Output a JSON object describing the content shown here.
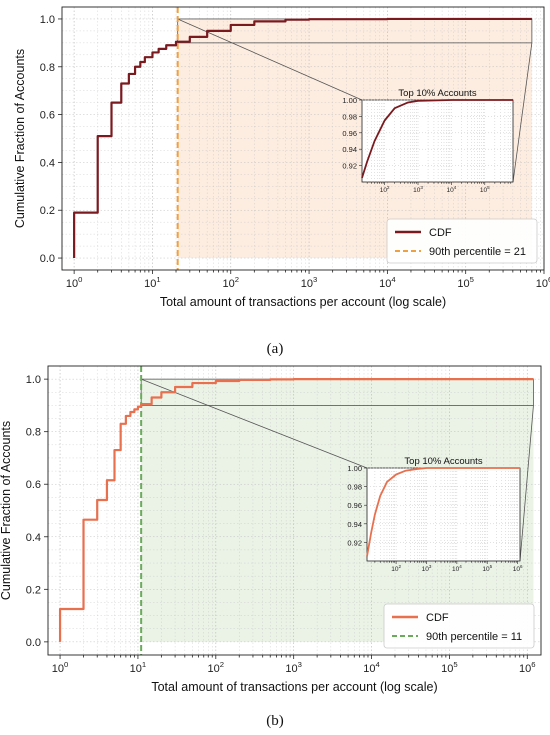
{
  "chart_data": [
    {
      "type": "line",
      "caption": "(a)",
      "xlabel": "Total amount of transactions per account (log scale)",
      "ylabel": "Cumulative Fraction of Accounts",
      "xscale": "log",
      "xlim": [
        0.7,
        1000000
      ],
      "ylim": [
        -0.05,
        1.05
      ],
      "xticks": [
        1,
        10,
        100,
        1000,
        10000,
        100000,
        1000000
      ],
      "xtick_labels": [
        [
          "10",
          "0"
        ],
        [
          "10",
          "1"
        ],
        [
          "10",
          "2"
        ],
        [
          "10",
          "3"
        ],
        [
          "10",
          "4"
        ],
        [
          "10",
          "5"
        ],
        [
          "10",
          "6"
        ]
      ],
      "yticks": [
        0.0,
        0.2,
        0.4,
        0.6,
        0.8,
        1.0
      ],
      "ytick_labels": [
        "0.0",
        "0.2",
        "0.4",
        "0.6",
        "0.8",
        "1.0"
      ],
      "grid": true,
      "legend_position": "lower-right",
      "series": [
        {
          "name": "CDF",
          "color": "#7a1a1f",
          "style": "step",
          "x": [
            1,
            2,
            3,
            4,
            5,
            6,
            7,
            8,
            10,
            12,
            15,
            20,
            30,
            50,
            100,
            200,
            500,
            1000,
            10000,
            100000,
            700000
          ],
          "y": [
            0.19,
            0.51,
            0.65,
            0.73,
            0.77,
            0.8,
            0.82,
            0.84,
            0.86,
            0.875,
            0.89,
            0.905,
            0.925,
            0.95,
            0.975,
            0.99,
            0.997,
            0.999,
            1.0,
            1.0,
            1.0
          ]
        }
      ],
      "percentile": {
        "label": "90th percentile = 21",
        "x": 21,
        "color": "#f0a040"
      },
      "shade_color": "#fdeadb",
      "inset": {
        "title": "Top 10% Accounts",
        "xlim": [
          21,
          700000
        ],
        "ylim": [
          0.9,
          1.0
        ],
        "yticks": [
          0.92,
          0.94,
          0.96,
          0.98,
          1.0
        ],
        "ytick_labels": [
          "0.92",
          "0.94",
          "0.96",
          "0.98",
          "1.00"
        ],
        "xticks": [
          100,
          1000,
          10000,
          100000
        ],
        "xtick_labels": [
          [
            "10",
            "2"
          ],
          [
            "10",
            "3"
          ],
          [
            "10",
            "4"
          ],
          [
            "10",
            "5"
          ]
        ]
      }
    },
    {
      "type": "line",
      "caption": "(b)",
      "xlabel": "Total amount of transactions per account (log scale)",
      "ylabel": "Cumulative Fraction of Accounts",
      "xscale": "log",
      "xlim": [
        0.7,
        1500000
      ],
      "ylim": [
        -0.05,
        1.05
      ],
      "xticks": [
        1,
        10,
        100,
        1000,
        10000,
        100000,
        1000000
      ],
      "xtick_labels": [
        [
          "10",
          "0"
        ],
        [
          "10",
          "1"
        ],
        [
          "10",
          "2"
        ],
        [
          "10",
          "3"
        ],
        [
          "10",
          "4"
        ],
        [
          "10",
          "5"
        ],
        [
          "10",
          "6"
        ]
      ],
      "yticks": [
        0.0,
        0.2,
        0.4,
        0.6,
        0.8,
        1.0
      ],
      "ytick_labels": [
        "0.0",
        "0.2",
        "0.4",
        "0.6",
        "0.8",
        "1.0"
      ],
      "grid": true,
      "legend_position": "lower-right",
      "series": [
        {
          "name": "CDF",
          "color": "#e8704f",
          "style": "step",
          "x": [
            1,
            2,
            3,
            4,
            5,
            6,
            7,
            8,
            9,
            10,
            11,
            15,
            20,
            30,
            50,
            100,
            200,
            500,
            1000,
            10000,
            1200000
          ],
          "y": [
            0.125,
            0.465,
            0.54,
            0.615,
            0.73,
            0.83,
            0.86,
            0.875,
            0.885,
            0.895,
            0.905,
            0.93,
            0.95,
            0.97,
            0.985,
            0.993,
            0.997,
            0.999,
            1.0,
            1.0,
            1.0
          ]
        }
      ],
      "percentile": {
        "label": "90th percentile = 11",
        "x": 11,
        "color": "#6aaa5a"
      },
      "shade_color": "#e7f1e3",
      "inset": {
        "title": "Top 10% Accounts",
        "xlim": [
          11,
          1200000
        ],
        "ylim": [
          0.9,
          1.0
        ],
        "yticks": [
          0.92,
          0.94,
          0.96,
          0.98,
          1.0
        ],
        "ytick_labels": [
          "0.92",
          "0.94",
          "0.96",
          "0.98",
          "1.00"
        ],
        "xticks": [
          100,
          1000,
          10000,
          100000,
          1000000
        ],
        "xtick_labels": [
          [
            "10",
            "2"
          ],
          [
            "10",
            "3"
          ],
          [
            "10",
            "4"
          ],
          [
            "10",
            "5"
          ],
          [
            "10",
            "6"
          ]
        ]
      }
    }
  ]
}
